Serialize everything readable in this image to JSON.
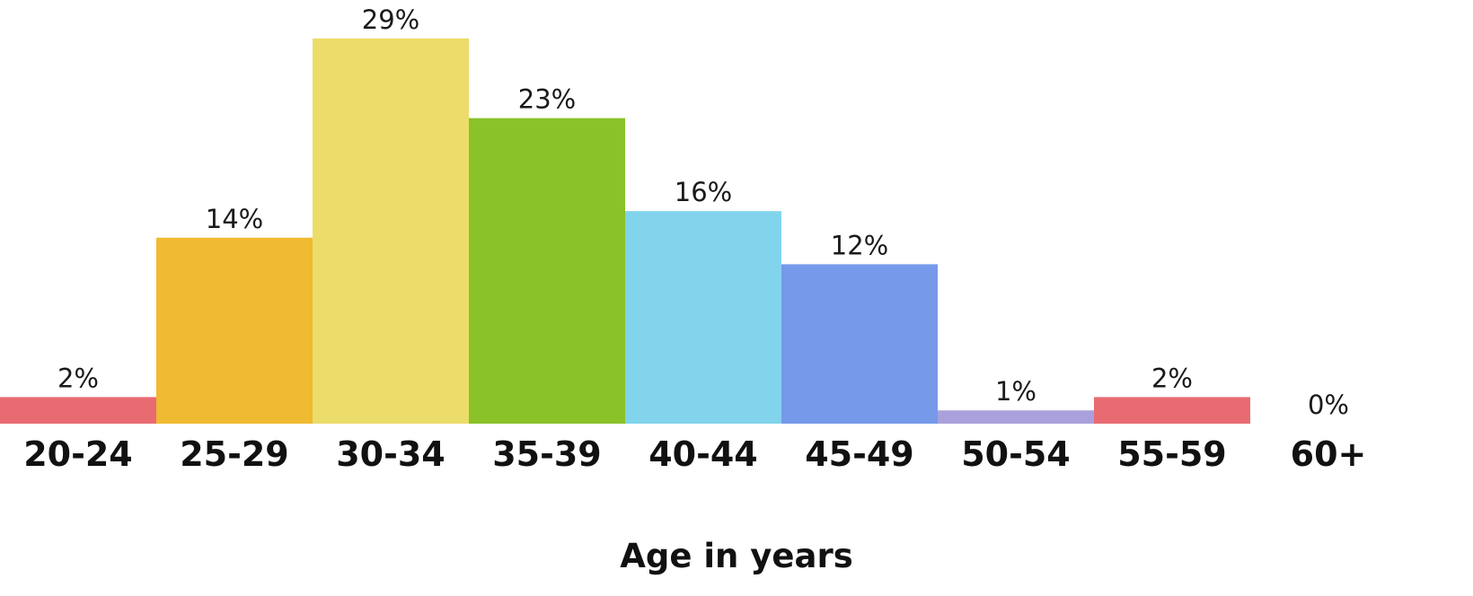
{
  "chart_data": {
    "type": "bar",
    "title": "",
    "xlabel": "Age in years",
    "ylabel": "",
    "ylim": [
      0,
      30
    ],
    "grid": false,
    "categories": [
      "20-24",
      "25-29",
      "30-34",
      "35-39",
      "40-44",
      "45-49",
      "50-54",
      "55-59",
      "60+"
    ],
    "values": [
      2,
      14,
      29,
      23,
      16,
      12,
      1,
      2,
      0
    ],
    "labels": [
      "2%",
      "14%",
      "29%",
      "23%",
      "16%",
      "12%",
      "1%",
      "2%",
      "0%"
    ],
    "colors": [
      "#e86b72",
      "#efbb30",
      "#ecdc6a",
      "#8ac22a",
      "#82d4ec",
      "#7699ea",
      "#aaa1dc",
      "#e86b72",
      "#cccccc"
    ]
  }
}
